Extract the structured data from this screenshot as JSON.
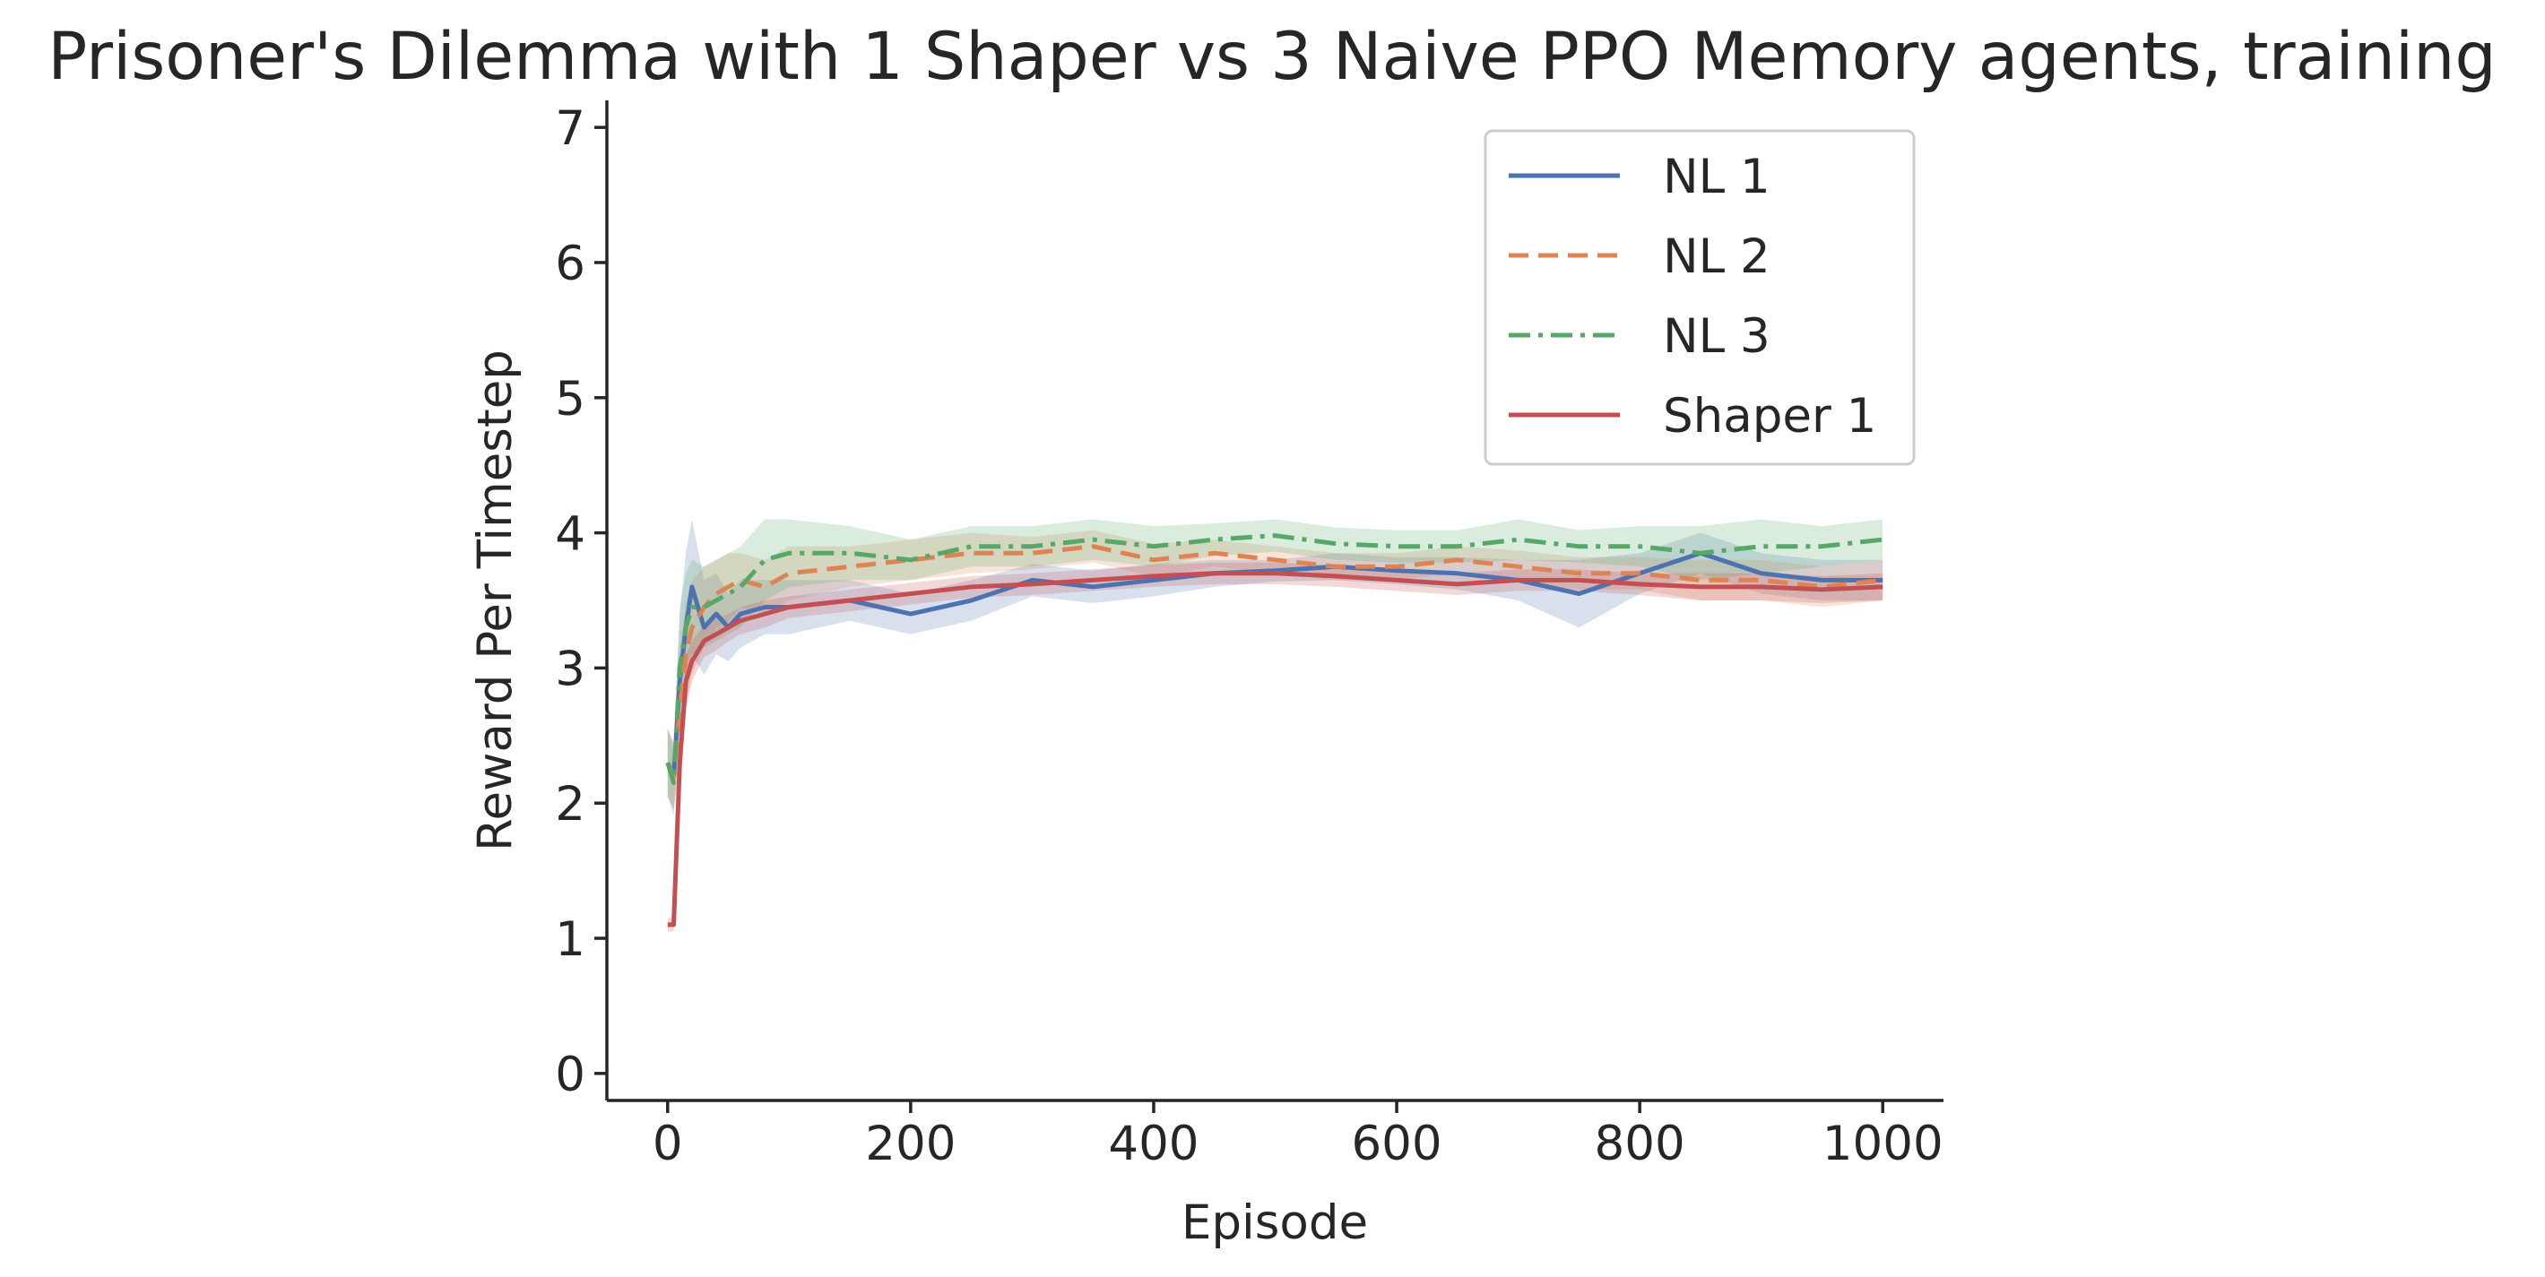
{
  "chart_data": {
    "type": "line",
    "title": "Prisoner's Dilemma with 1 Shaper vs 3 Naive PPO Memory agents, training",
    "xlabel": "Episode",
    "ylabel": "Reward Per Timestep",
    "xlim": [
      -50,
      1050
    ],
    "ylim": [
      -0.2,
      7.2
    ],
    "xticks": [
      0,
      200,
      400,
      600,
      800,
      1000
    ],
    "yticks": [
      0,
      1,
      2,
      3,
      4,
      5,
      6,
      7
    ],
    "grid": false,
    "legend_position": "top-right",
    "x": [
      0,
      5,
      10,
      15,
      20,
      30,
      40,
      50,
      60,
      80,
      100,
      150,
      200,
      250,
      300,
      350,
      400,
      450,
      500,
      550,
      600,
      650,
      700,
      750,
      800,
      850,
      900,
      950,
      1000
    ],
    "series": [
      {
        "name": "NL 1",
        "color": "#4c72b0",
        "dash": "solid",
        "values": [
          2.3,
          2.2,
          2.9,
          3.3,
          3.6,
          3.3,
          3.4,
          3.3,
          3.4,
          3.45,
          3.45,
          3.5,
          3.4,
          3.5,
          3.65,
          3.6,
          3.65,
          3.7,
          3.72,
          3.75,
          3.72,
          3.7,
          3.65,
          3.55,
          3.7,
          3.85,
          3.7,
          3.65,
          3.65
        ],
        "band": [
          0.25,
          0.25,
          0.5,
          0.55,
          0.5,
          0.35,
          0.3,
          0.25,
          0.25,
          0.2,
          0.2,
          0.15,
          0.15,
          0.15,
          0.12,
          0.12,
          0.12,
          0.1,
          0.08,
          0.1,
          0.1,
          0.12,
          0.15,
          0.25,
          0.15,
          0.15,
          0.15,
          0.15,
          0.15
        ]
      },
      {
        "name": "NL 2",
        "color": "#dd8452",
        "dash": "dashed",
        "values": [
          2.3,
          2.2,
          2.7,
          3.1,
          3.3,
          3.45,
          3.55,
          3.6,
          3.65,
          3.6,
          3.7,
          3.75,
          3.8,
          3.85,
          3.85,
          3.9,
          3.8,
          3.85,
          3.8,
          3.75,
          3.75,
          3.8,
          3.75,
          3.7,
          3.7,
          3.65,
          3.65,
          3.6,
          3.65
        ],
        "band": [
          0.25,
          0.25,
          0.45,
          0.4,
          0.35,
          0.3,
          0.25,
          0.25,
          0.2,
          0.2,
          0.2,
          0.15,
          0.15,
          0.15,
          0.12,
          0.12,
          0.12,
          0.1,
          0.1,
          0.1,
          0.1,
          0.1,
          0.12,
          0.12,
          0.12,
          0.15,
          0.15,
          0.15,
          0.15
        ]
      },
      {
        "name": "NL 3",
        "color": "#55a868",
        "dash": "dashdot",
        "values": [
          2.3,
          2.15,
          3.0,
          3.3,
          3.45,
          3.45,
          3.5,
          3.55,
          3.6,
          3.8,
          3.85,
          3.85,
          3.8,
          3.9,
          3.9,
          3.95,
          3.9,
          3.95,
          3.98,
          3.92,
          3.9,
          3.9,
          3.95,
          3.9,
          3.9,
          3.85,
          3.9,
          3.9,
          3.95
        ],
        "band": [
          0.25,
          0.25,
          0.45,
          0.4,
          0.35,
          0.3,
          0.3,
          0.3,
          0.3,
          0.3,
          0.25,
          0.2,
          0.15,
          0.15,
          0.15,
          0.15,
          0.15,
          0.12,
          0.12,
          0.12,
          0.12,
          0.12,
          0.15,
          0.12,
          0.15,
          0.2,
          0.2,
          0.15,
          0.15
        ]
      },
      {
        "name": "Shaper 1",
        "color": "#c44e52",
        "dash": "solid",
        "values": [
          1.1,
          1.1,
          2.3,
          2.9,
          3.05,
          3.2,
          3.25,
          3.3,
          3.35,
          3.4,
          3.45,
          3.5,
          3.55,
          3.6,
          3.62,
          3.65,
          3.68,
          3.7,
          3.7,
          3.68,
          3.65,
          3.62,
          3.65,
          3.65,
          3.62,
          3.6,
          3.6,
          3.58,
          3.6
        ],
        "band": [
          0.05,
          0.05,
          0.25,
          0.2,
          0.15,
          0.12,
          0.12,
          0.1,
          0.1,
          0.1,
          0.08,
          0.08,
          0.08,
          0.08,
          0.08,
          0.08,
          0.08,
          0.08,
          0.08,
          0.08,
          0.08,
          0.08,
          0.08,
          0.08,
          0.08,
          0.1,
          0.1,
          0.1,
          0.1
        ]
      }
    ]
  }
}
